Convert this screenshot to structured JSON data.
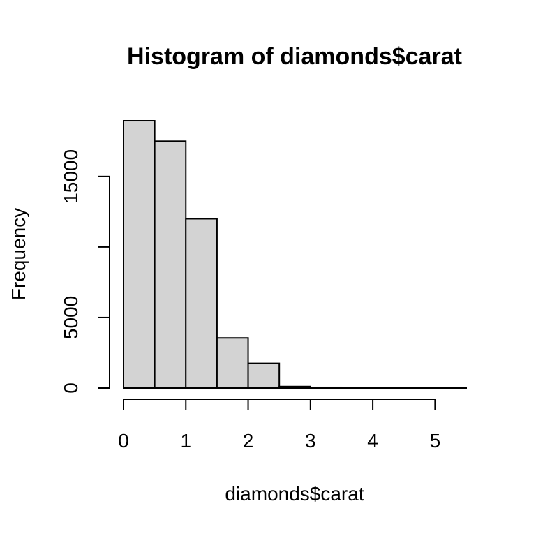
{
  "chart_data": {
    "type": "bar",
    "title": "Histogram of diamonds$carat",
    "xlabel": "diamonds$carat",
    "ylabel": "Frequency",
    "bin_edges": [
      0,
      0.5,
      1,
      1.5,
      2,
      2.5,
      3,
      3.5,
      4,
      4.5,
      5,
      5.5
    ],
    "values": [
      18950,
      17500,
      12000,
      3550,
      1750,
      110,
      50,
      15,
      8,
      3,
      1
    ],
    "xlim": [
      0,
      5.5
    ],
    "ylim": [
      0,
      19000
    ],
    "x_ticks": [
      0,
      1,
      2,
      3,
      4,
      5
    ],
    "y_ticks": [
      0,
      5000,
      15000
    ],
    "y_tick_marks": [
      0,
      5000,
      10000,
      15000
    ],
    "bar_color": "#d3d3d3",
    "grid": false,
    "legend": "none"
  }
}
